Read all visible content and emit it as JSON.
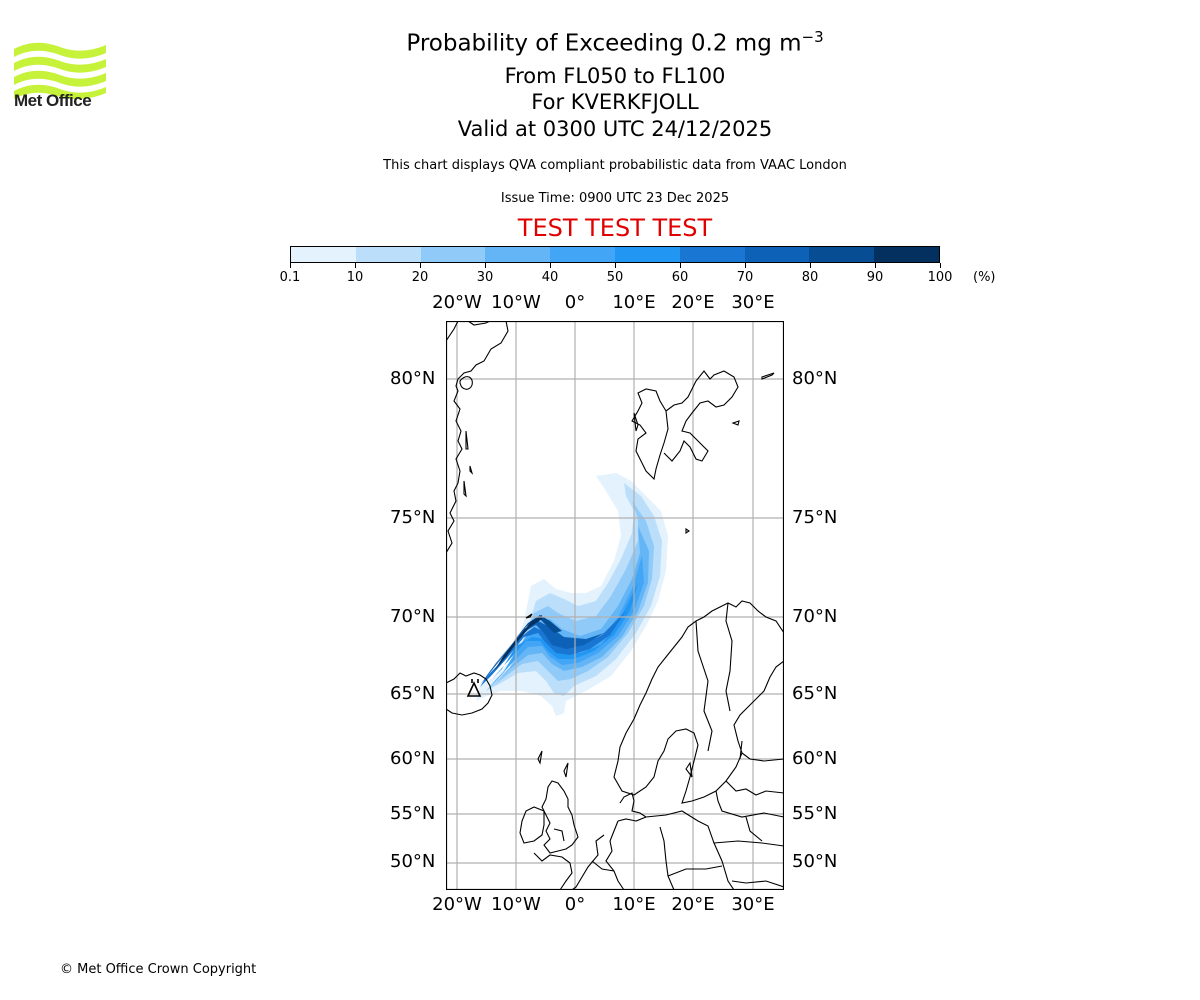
{
  "logo": {
    "text": "Met Office",
    "icon": "met-office-waves-logo",
    "color": "#c6f23a"
  },
  "header": {
    "title_main": "Probability of Exceeding 0.2 mg m",
    "title_sup": "−3",
    "line1": "From FL050 to FL100",
    "line2": "For KVERKFJOLL",
    "line3": "Valid at 0300 UTC 24/12/2025",
    "description": "This chart displays QVA compliant probabilistic data from VAAC London",
    "issue_time": "Issue Time: 0900 UTC 23 Dec 2025",
    "test_banner": "TEST TEST TEST",
    "test_color": "#e00000"
  },
  "colorbar": {
    "ticks": [
      "0.1",
      "10",
      "20",
      "30",
      "40",
      "50",
      "60",
      "70",
      "80",
      "90",
      "100"
    ],
    "unit": "(%)",
    "colors": [
      "#e3f2fd",
      "#bbdefb",
      "#90caf9",
      "#64b5f6",
      "#42a5f5",
      "#2196f3",
      "#1976d2",
      "#0d62b8",
      "#064d94",
      "#03305e"
    ]
  },
  "map": {
    "lon_labels": [
      "20°W",
      "10°W",
      "0°",
      "10°E",
      "20°E",
      "30°E"
    ],
    "lat_labels": [
      "80°N",
      "75°N",
      "70°N",
      "65°N",
      "60°N",
      "55°N",
      "50°N"
    ],
    "source_volcano": "KVERKFJOLL"
  },
  "footer": {
    "copyright": "© Met Office Crown Copyright"
  }
}
